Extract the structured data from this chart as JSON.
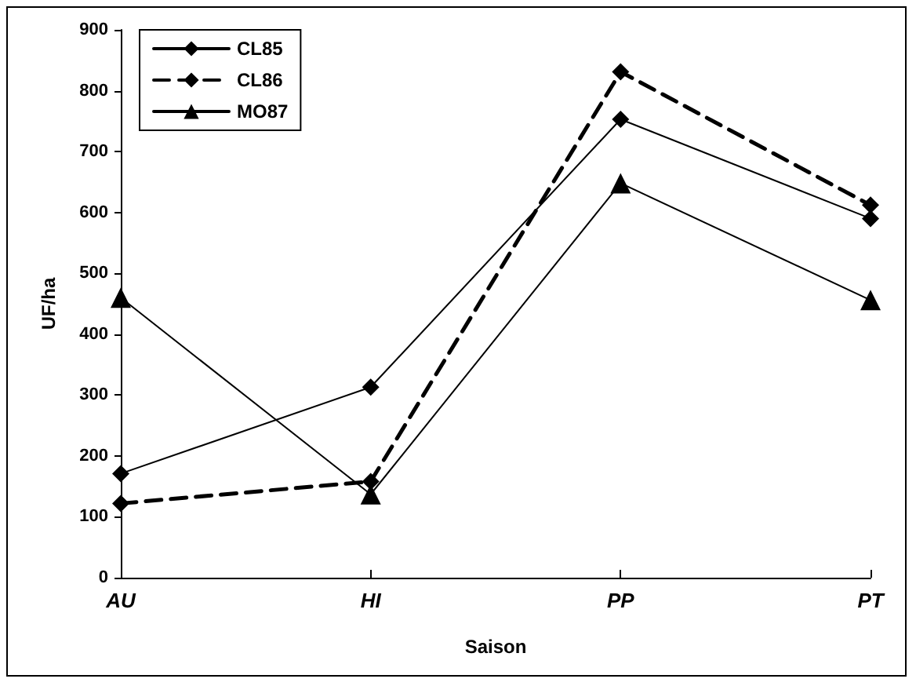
{
  "chart_data": {
    "type": "line",
    "xlabel": "Saison",
    "ylabel": "UF/ha",
    "categories": [
      "AU",
      "HI",
      "PP",
      "PT"
    ],
    "series": [
      {
        "name": "CL85",
        "color": "#000000",
        "marker": "diamond",
        "line_style": "solid",
        "values": [
          171,
          313,
          753,
          590
        ]
      },
      {
        "name": "CL86",
        "color": "#000000",
        "marker": "diamond",
        "line_style": "dashed",
        "values": [
          122,
          158,
          831,
          612
        ]
      },
      {
        "name": "MO87",
        "color": "#000000",
        "marker": "triangle",
        "line_style": "solid",
        "values": [
          460,
          137,
          648,
          456
        ]
      }
    ],
    "ylim": [
      0,
      900
    ],
    "yticks": [
      0,
      100,
      200,
      300,
      400,
      500,
      600,
      700,
      800,
      900
    ],
    "grid": false,
    "legend": "top left"
  }
}
